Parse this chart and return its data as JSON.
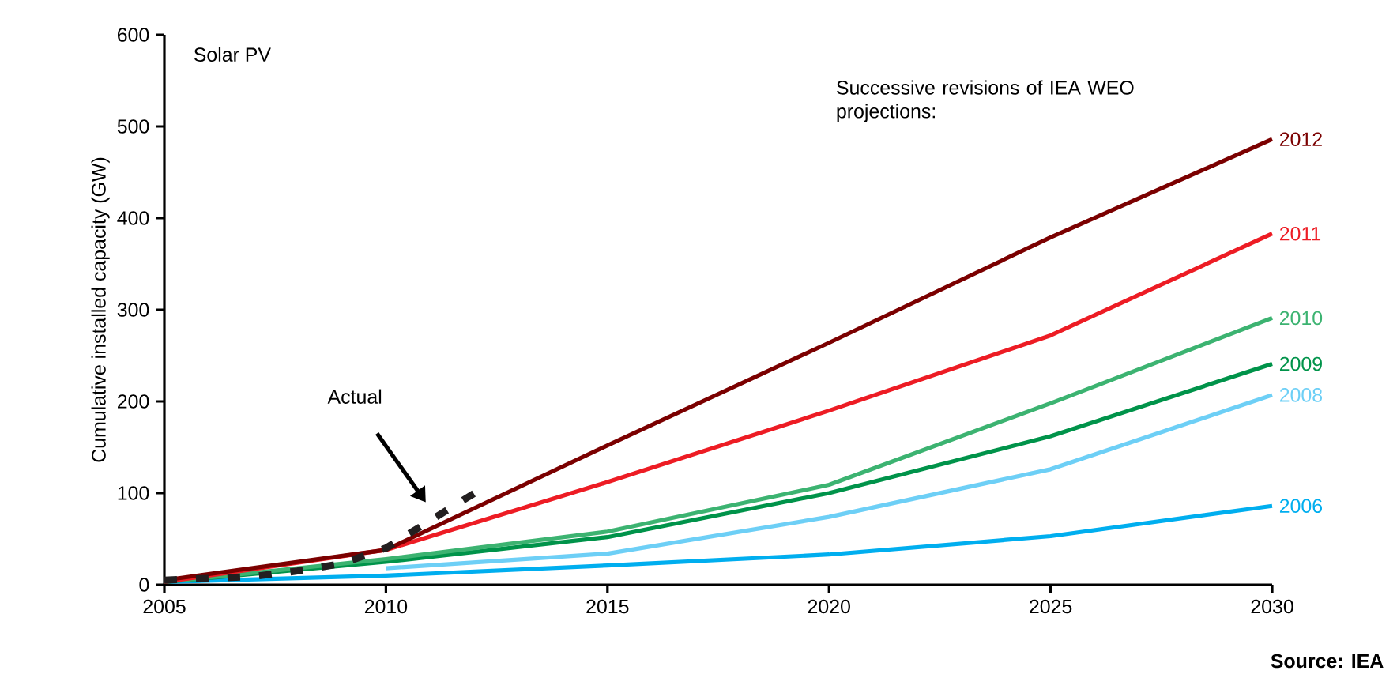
{
  "chart_data": {
    "type": "line",
    "title": "Solar PV",
    "ylabel": "Cumulative installed capacity (GW)",
    "annotations": [
      "Successive revisions of IEA WEO projections:",
      "Source: IEA"
    ],
    "xlim": [
      2005,
      2030
    ],
    "xticks": [
      2005,
      2010,
      2015,
      2020,
      2025,
      2030
    ],
    "ylim": [
      0,
      600
    ],
    "yticks": [
      0,
      100,
      200,
      300,
      400,
      500,
      600
    ],
    "grid": false,
    "legend": false,
    "marker": "none",
    "series": [
      {
        "name": "2006",
        "color": "#00aeef",
        "x": [
          2005,
          2010,
          2015,
          2020,
          2025,
          2030
        ],
        "values": [
          3,
          10,
          21,
          33,
          53,
          86
        ]
      },
      {
        "name": "2008",
        "color": "#6dcff6",
        "x": [
          2010,
          2015,
          2020,
          2025,
          2030
        ],
        "values": [
          18,
          34,
          74,
          126,
          207
        ]
      },
      {
        "name": "2009",
        "color": "#00934a",
        "x": [
          2005,
          2010,
          2015,
          2020,
          2025,
          2030
        ],
        "values": [
          3,
          25,
          52,
          100,
          162,
          241
        ]
      },
      {
        "name": "2010",
        "color": "#3cb371",
        "x": [
          2005,
          2010,
          2015,
          2020,
          2025,
          2030
        ],
        "values": [
          3,
          28,
          58,
          109,
          198,
          291
        ]
      },
      {
        "name": "2011",
        "color": "#ed1c24",
        "x": [
          2005,
          2010,
          2015,
          2020,
          2025,
          2030
        ],
        "values": [
          3,
          38,
          112,
          190,
          272,
          383
        ]
      },
      {
        "name": "2012",
        "color": "#7b0000",
        "x": [
          2005,
          2010,
          2015,
          2020,
          2025,
          2030
        ],
        "values": [
          5,
          38,
          152,
          264,
          379,
          486
        ]
      },
      {
        "name": "Actual",
        "color": "#231f20",
        "line_style": "dashed",
        "x": [
          2005,
          2006,
          2007,
          2008,
          2009,
          2010,
          2011,
          2012
        ],
        "values": [
          5,
          7,
          9,
          15,
          23,
          40,
          70,
          100
        ]
      }
    ]
  }
}
